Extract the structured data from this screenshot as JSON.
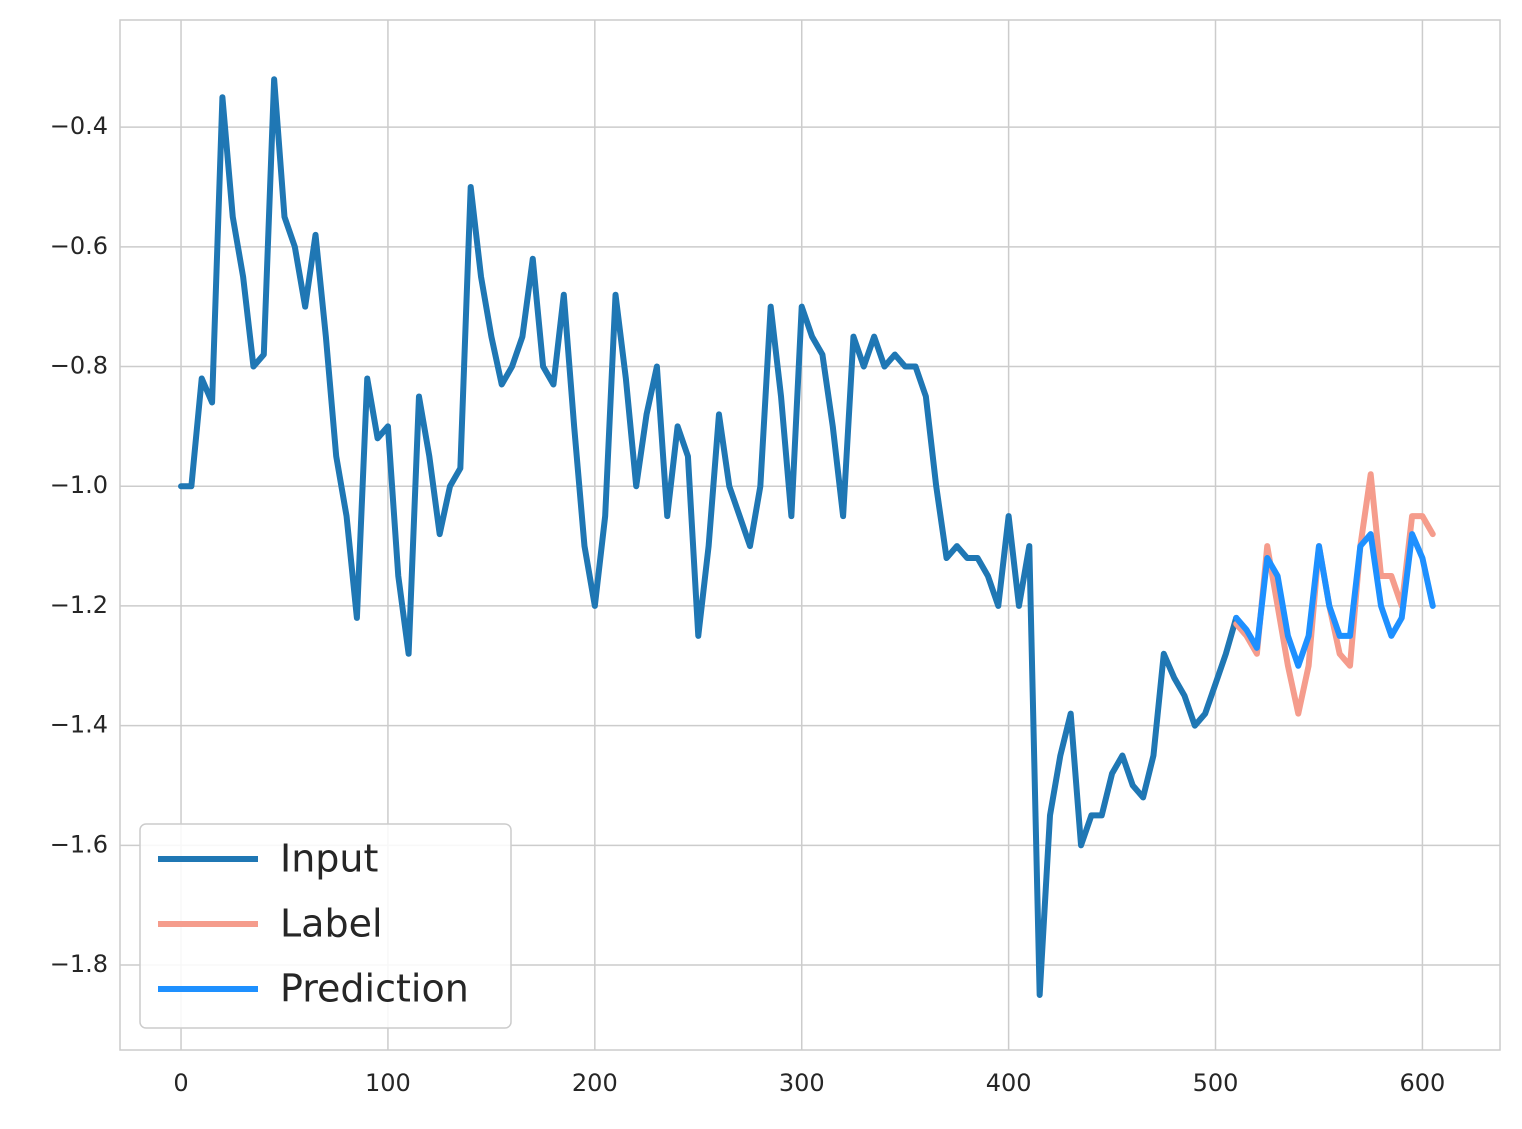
{
  "chart_data": {
    "type": "line",
    "x": [
      0,
      5,
      10,
      15,
      20,
      25,
      30,
      35,
      40,
      45,
      50,
      55,
      60,
      65,
      70,
      75,
      80,
      85,
      90,
      95,
      100,
      105,
      110,
      115,
      120,
      125,
      130,
      135,
      140,
      145,
      150,
      155,
      160,
      165,
      170,
      175,
      180,
      185,
      190,
      195,
      200,
      205,
      210,
      215,
      220,
      225,
      230,
      235,
      240,
      245,
      250,
      255,
      260,
      265,
      270,
      275,
      280,
      285,
      290,
      295,
      300,
      305,
      310,
      315,
      320,
      325,
      330,
      335,
      340,
      345,
      350,
      355,
      360,
      365,
      370,
      375,
      380,
      385,
      390,
      395,
      400,
      405,
      410,
      415,
      420,
      425,
      430,
      435,
      440,
      445,
      450,
      455,
      460,
      465,
      470,
      475,
      480,
      485,
      490,
      495,
      500,
      505,
      510,
      515,
      520,
      525,
      530,
      535,
      540,
      545,
      550,
      555,
      560,
      565,
      570,
      575,
      580,
      585,
      590,
      595,
      600,
      605
    ],
    "series": [
      {
        "name": "Input",
        "color": "#1f77b4",
        "values": [
          -1.0,
          -1.0,
          -0.82,
          -0.86,
          -0.35,
          -0.55,
          -0.65,
          -0.8,
          -0.78,
          -0.32,
          -0.55,
          -0.6,
          -0.7,
          -0.58,
          -0.75,
          -0.95,
          -1.05,
          -1.22,
          -0.82,
          -0.92,
          -0.9,
          -1.15,
          -1.28,
          -0.85,
          -0.95,
          -1.08,
          -1.0,
          -0.97,
          -0.5,
          -0.65,
          -0.75,
          -0.83,
          -0.8,
          -0.75,
          -0.62,
          -0.8,
          -0.83,
          -0.68,
          -0.9,
          -1.1,
          -1.2,
          -1.05,
          -0.68,
          -0.82,
          -1.0,
          -0.88,
          -0.8,
          -1.05,
          -0.9,
          -0.95,
          -1.25,
          -1.1,
          -0.88,
          -1.0,
          -1.05,
          -1.1,
          -1.0,
          -0.7,
          -0.85,
          -1.05,
          -0.7,
          -0.75,
          -0.78,
          -0.9,
          -1.05,
          -0.75,
          -0.8,
          -0.75,
          -0.8,
          -0.78,
          -0.8,
          -0.8,
          -0.85,
          -1.0,
          -1.12,
          -1.1,
          -1.12,
          -1.12,
          -1.15,
          -1.2,
          -1.05,
          -1.2,
          -1.1,
          -1.85,
          -1.55,
          -1.45,
          -1.38,
          -1.6,
          -1.55,
          -1.55,
          -1.48,
          -1.45,
          -1.5,
          -1.52,
          -1.45,
          -1.28,
          -1.32,
          -1.35,
          -1.4,
          -1.38,
          -1.33,
          -1.28,
          -1.22,
          null,
          null,
          null,
          null,
          null,
          null,
          null,
          null,
          null,
          null,
          null,
          null,
          null,
          null,
          null,
          null,
          null,
          null,
          null
        ]
      },
      {
        "name": "Label",
        "color": "#f59c8c",
        "values": [
          null,
          null,
          null,
          null,
          null,
          null,
          null,
          null,
          null,
          null,
          null,
          null,
          null,
          null,
          null,
          null,
          null,
          null,
          null,
          null,
          null,
          null,
          null,
          null,
          null,
          null,
          null,
          null,
          null,
          null,
          null,
          null,
          null,
          null,
          null,
          null,
          null,
          null,
          null,
          null,
          null,
          null,
          null,
          null,
          null,
          null,
          null,
          null,
          null,
          null,
          null,
          null,
          null,
          null,
          null,
          null,
          null,
          null,
          null,
          null,
          null,
          null,
          null,
          null,
          null,
          null,
          null,
          null,
          null,
          null,
          null,
          null,
          null,
          null,
          null,
          null,
          null,
          null,
          null,
          null,
          null,
          null,
          null,
          null,
          null,
          null,
          null,
          null,
          null,
          null,
          null,
          null,
          null,
          null,
          null,
          null,
          null,
          null,
          null,
          null,
          null,
          null,
          -1.23,
          -1.25,
          -1.28,
          -1.1,
          -1.2,
          -1.3,
          -1.38,
          -1.3,
          -1.1,
          -1.2,
          -1.28,
          -1.3,
          -1.1,
          -0.98,
          -1.15,
          -1.15,
          -1.2,
          -1.05,
          -1.05,
          -1.08
        ]
      },
      {
        "name": "Prediction",
        "color": "#1e90ff",
        "values": [
          null,
          null,
          null,
          null,
          null,
          null,
          null,
          null,
          null,
          null,
          null,
          null,
          null,
          null,
          null,
          null,
          null,
          null,
          null,
          null,
          null,
          null,
          null,
          null,
          null,
          null,
          null,
          null,
          null,
          null,
          null,
          null,
          null,
          null,
          null,
          null,
          null,
          null,
          null,
          null,
          null,
          null,
          null,
          null,
          null,
          null,
          null,
          null,
          null,
          null,
          null,
          null,
          null,
          null,
          null,
          null,
          null,
          null,
          null,
          null,
          null,
          null,
          null,
          null,
          null,
          null,
          null,
          null,
          null,
          null,
          null,
          null,
          null,
          null,
          null,
          null,
          null,
          null,
          null,
          null,
          null,
          null,
          null,
          null,
          null,
          null,
          null,
          null,
          null,
          null,
          null,
          null,
          null,
          null,
          null,
          null,
          null,
          null,
          null,
          null,
          null,
          null,
          -1.22,
          -1.24,
          -1.27,
          -1.12,
          -1.15,
          -1.25,
          -1.3,
          -1.25,
          -1.1,
          -1.2,
          -1.25,
          -1.25,
          -1.1,
          -1.08,
          -1.2,
          -1.25,
          -1.22,
          -1.08,
          -1.12,
          -1.2
        ]
      }
    ],
    "xlim": [
      -29.5,
      637.5
    ],
    "ylim": [
      -1.942,
      -0.221
    ],
    "xticks": [
      0,
      100,
      200,
      300,
      400,
      500,
      600
    ],
    "yticks": [
      {
        "value": -1.8,
        "label": "−1.8"
      },
      {
        "value": -1.6,
        "label": "−1.6"
      },
      {
        "value": -1.4,
        "label": "−1.4"
      },
      {
        "value": -1.2,
        "label": "−1.2"
      },
      {
        "value": -1.0,
        "label": "−1.0"
      },
      {
        "value": -0.8,
        "label": "−0.8"
      },
      {
        "value": -0.6,
        "label": "−0.6"
      },
      {
        "value": -0.4,
        "label": "−0.4"
      }
    ],
    "grid": true,
    "legend": "lower left"
  }
}
